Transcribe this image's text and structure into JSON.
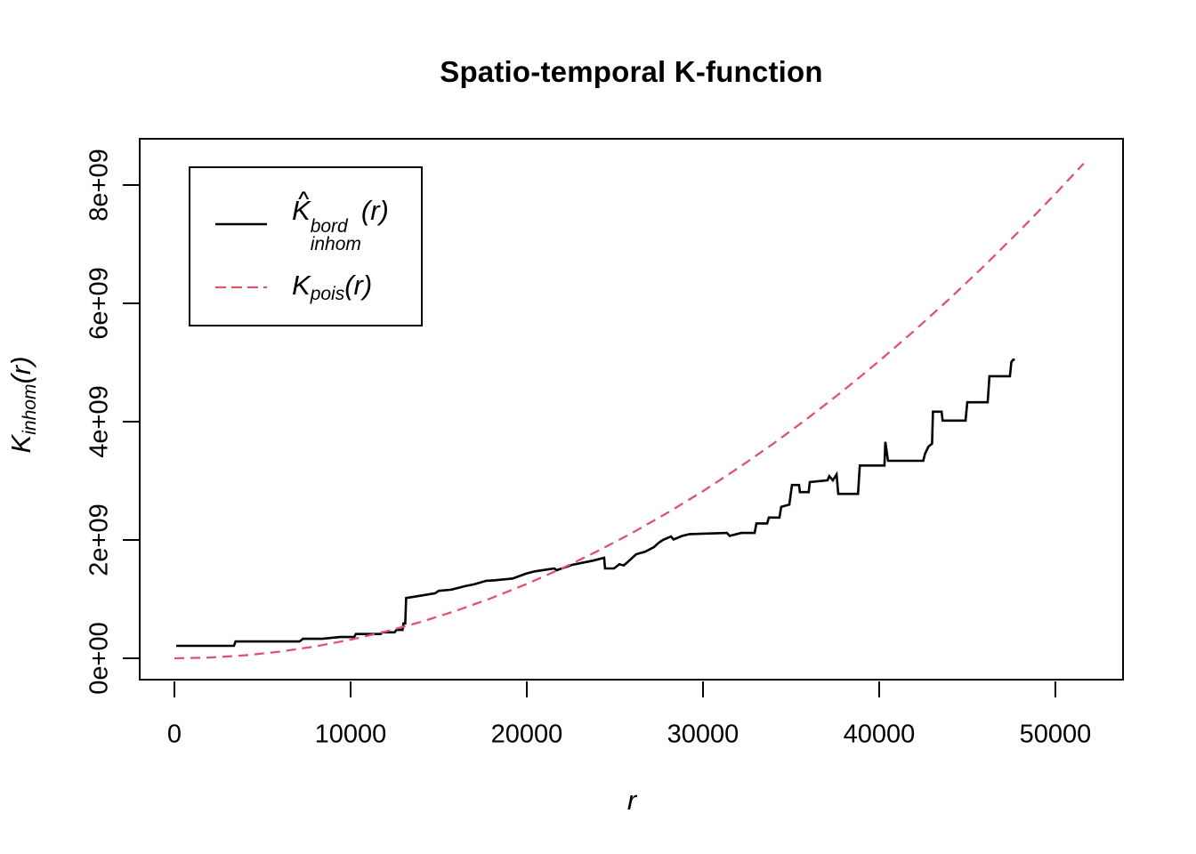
{
  "title": "Spatio-temporal K-function",
  "colors": {
    "empirical_black": "#000000",
    "poisson_red": "#DF536B",
    "background": "#ffffff"
  },
  "x_axis": {
    "label": "r",
    "ticks": [
      "0",
      "10000",
      "20000",
      "30000",
      "40000",
      "50000"
    ]
  },
  "y_axis": {
    "label_main": "K",
    "label_sub": "inhom",
    "label_paren": "(r)",
    "ticks": [
      "0e+00",
      "2e+09",
      "4e+09",
      "6e+09",
      "8e+09"
    ]
  },
  "legend": {
    "items": [
      {
        "hat": "∧",
        "main": "K",
        "sup": "bord",
        "sub": "inhom",
        "paren": "(r)",
        "line_style": "solid",
        "color": "#000000"
      },
      {
        "main": "K",
        "sub": "pois",
        "paren": "(r)",
        "line_style": "dashed",
        "color": "#DF536B"
      }
    ]
  },
  "chart_data": {
    "type": "line",
    "title": "Spatio-temporal K-function",
    "xlabel": "r",
    "ylabel": "K_inhom(r)",
    "xlim": [
      -2020,
      53890
    ],
    "ylim": [
      -376000000.0,
      8800000000.0
    ],
    "x_ticks": [
      0,
      10000,
      20000,
      30000,
      40000,
      50000
    ],
    "y_ticks": [
      0,
      2000000000.0,
      4000000000.0,
      6000000000.0,
      8000000000.0
    ],
    "grid": false,
    "legend_position": "top-left",
    "series": [
      {
        "name": "K-hat_inhom^bord(r) border-corrected estimate",
        "data_name": "empirical-k-curve",
        "style": "solid",
        "color": "#000000",
        "width": 2.6,
        "points": [
          [
            100,
            210000000.0
          ],
          [
            3380,
            210000000.0
          ],
          [
            3470,
            285000000.0
          ],
          [
            7100,
            285000000.0
          ],
          [
            7300,
            330000000.0
          ],
          [
            8400,
            330000000.0
          ],
          [
            9400,
            360000000.0
          ],
          [
            10200,
            360000000.0
          ],
          [
            10300,
            410000000.0
          ],
          [
            11700,
            410000000.0
          ],
          [
            11800,
            440000000.0
          ],
          [
            12500,
            440000000.0
          ],
          [
            12600,
            480000000.0
          ],
          [
            12950,
            480000000.0
          ],
          [
            13000,
            590000000.0
          ],
          [
            13100,
            590000000.0
          ],
          [
            13150,
            1020000000.0
          ],
          [
            13800,
            1050000000.0
          ],
          [
            14800,
            1100000000.0
          ],
          [
            15000,
            1140000000.0
          ],
          [
            15700,
            1160000000.0
          ],
          [
            16500,
            1220000000.0
          ],
          [
            17000,
            1250000000.0
          ],
          [
            17700,
            1310000000.0
          ],
          [
            18200,
            1320000000.0
          ],
          [
            19200,
            1350000000.0
          ],
          [
            19950,
            1430000000.0
          ],
          [
            20450,
            1470000000.0
          ],
          [
            21560,
            1520000000.0
          ],
          [
            21700,
            1490000000.0
          ],
          [
            22570,
            1580000000.0
          ],
          [
            23230,
            1620000000.0
          ],
          [
            23740,
            1650000000.0
          ],
          [
            24390,
            1700000000.0
          ],
          [
            24440,
            1520000000.0
          ],
          [
            24950,
            1520000000.0
          ],
          [
            25250,
            1590000000.0
          ],
          [
            25500,
            1570000000.0
          ],
          [
            25700,
            1620000000.0
          ],
          [
            26210,
            1760000000.0
          ],
          [
            26710,
            1800000000.0
          ],
          [
            27220,
            1880000000.0
          ],
          [
            27470,
            1950000000.0
          ],
          [
            27720,
            2000000000.0
          ],
          [
            28180,
            2060000000.0
          ],
          [
            28330,
            2010000000.0
          ],
          [
            28830,
            2070000000.0
          ],
          [
            29240,
            2100000000.0
          ],
          [
            31360,
            2120000000.0
          ],
          [
            31510,
            2070000000.0
          ],
          [
            32170,
            2120000000.0
          ],
          [
            32930,
            2120000000.0
          ],
          [
            33030,
            2280000000.0
          ],
          [
            33640,
            2280000000.0
          ],
          [
            33740,
            2380000000.0
          ],
          [
            34340,
            2380000000.0
          ],
          [
            34440,
            2560000000.0
          ],
          [
            34900,
            2600000000.0
          ],
          [
            35050,
            2930000000.0
          ],
          [
            35450,
            2930000000.0
          ],
          [
            35500,
            2810000000.0
          ],
          [
            36000,
            2810000000.0
          ],
          [
            36060,
            2980000000.0
          ],
          [
            37070,
            3010000000.0
          ],
          [
            37170,
            3080000000.0
          ],
          [
            37370,
            3010000000.0
          ],
          [
            37580,
            3110000000.0
          ],
          [
            37680,
            2780000000.0
          ],
          [
            38800,
            2780000000.0
          ],
          [
            38900,
            3260000000.0
          ],
          [
            40300,
            3260000000.0
          ],
          [
            40350,
            3660000000.0
          ],
          [
            40500,
            3340000000.0
          ],
          [
            42500,
            3340000000.0
          ],
          [
            42600,
            3460000000.0
          ],
          [
            42800,
            3580000000.0
          ],
          [
            43000,
            3630000000.0
          ],
          [
            43050,
            4170000000.0
          ],
          [
            43540,
            4170000000.0
          ],
          [
            43600,
            4020000000.0
          ],
          [
            44900,
            4020000000.0
          ],
          [
            45000,
            4330000000.0
          ],
          [
            46160,
            4330000000.0
          ],
          [
            46260,
            4770000000.0
          ],
          [
            47420,
            4770000000.0
          ],
          [
            47500,
            5010000000.0
          ],
          [
            47600,
            5050000000.0
          ],
          [
            47700,
            5050000000.0
          ]
        ]
      },
      {
        "name": "K_pois(r) theoretical Poisson (pi*r^2)",
        "data_name": "poisson-k-curve",
        "style": "dashed",
        "color": "#DF536B",
        "width": 2.3,
        "points": [
          [
            0,
            0
          ],
          [
            2000,
            12600000.0
          ],
          [
            4000,
            50300000.0
          ],
          [
            6000,
            113100000.0
          ],
          [
            8000,
            201100000.0
          ],
          [
            10000,
            314200000.0
          ],
          [
            12000,
            452400000.0
          ],
          [
            14000,
            615800000.0
          ],
          [
            16000,
            804200000.0
          ],
          [
            18000,
            1018000000.0
          ],
          [
            20000,
            1257000000.0
          ],
          [
            22000,
            1521000000.0
          ],
          [
            24000,
            1810000000.0
          ],
          [
            26000,
            2124000000.0
          ],
          [
            28000,
            2463000000.0
          ],
          [
            30000,
            2827000000.0
          ],
          [
            32000,
            3217000000.0
          ],
          [
            34000,
            3632000000.0
          ],
          [
            36000,
            4072000000.0
          ],
          [
            38000,
            4536000000.0
          ],
          [
            40000,
            5027000000.0
          ],
          [
            42000,
            5542000000.0
          ],
          [
            44000,
            6082000000.0
          ],
          [
            46000,
            6648000000.0
          ],
          [
            48000,
            7238000000.0
          ],
          [
            50000,
            7854000000.0
          ],
          [
            51600,
            8365000000.0
          ]
        ]
      }
    ]
  }
}
